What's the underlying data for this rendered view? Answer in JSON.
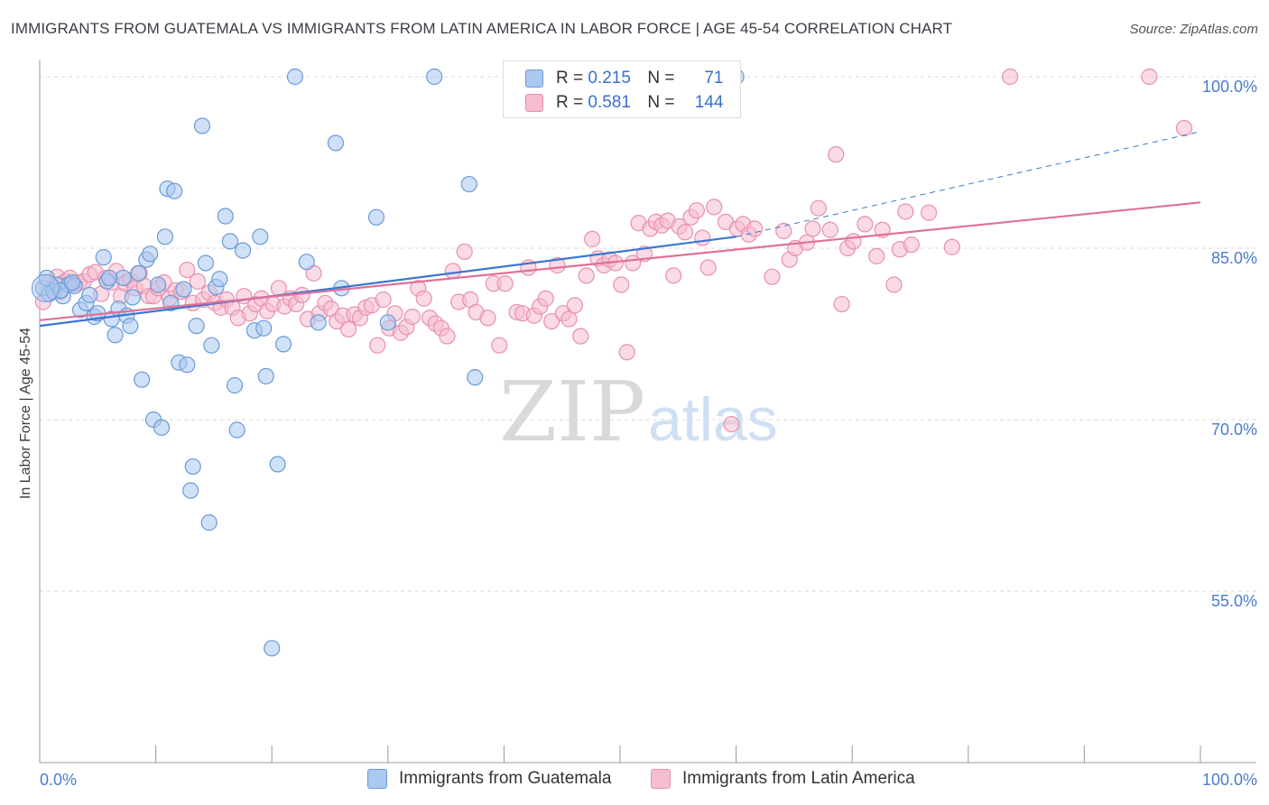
{
  "title": "IMMIGRANTS FROM GUATEMALA VS IMMIGRANTS FROM LATIN AMERICA IN LABOR FORCE | AGE 45-54 CORRELATION CHART",
  "source": "Source: ZipAtlas.com",
  "watermark": {
    "zip": "ZIP",
    "atlas": "atlas"
  },
  "legend": {
    "rows": [
      {
        "r_label": "R =",
        "r_value": "0.215",
        "n_label": "N =",
        "n_value": "71"
      },
      {
        "r_label": "R =",
        "r_value": "0.581",
        "n_label": "N =",
        "n_value": "144"
      }
    ]
  },
  "colors": {
    "blue_fill": "#aac8f0",
    "blue_stroke": "#6a9ad8",
    "blue_line": "#3a76d0",
    "pink_fill": "#f6bcd0",
    "pink_stroke": "#e890ae",
    "pink_line": "#e0709a",
    "tick_label": "#4a7ccc",
    "grid": "#d8d8d8"
  },
  "chart_data": {
    "type": "scatter",
    "title": "IMMIGRANTS FROM GUATEMALA VS IMMIGRANTS FROM LATIN AMERICA IN LABOR FORCE | AGE 45-54 CORRELATION CHART",
    "xlabel": "",
    "ylabel": "In Labor Force | Age 45-54",
    "xlim": [
      0,
      100
    ],
    "ylim": [
      40,
      101.5
    ],
    "x_tick_labels": [
      "0.0%",
      "100.0%"
    ],
    "y_ticks": [
      55,
      70,
      85,
      100
    ],
    "y_tick_labels": [
      "55.0%",
      "70.0%",
      "85.0%",
      "100.0%"
    ],
    "grid": true,
    "legend_position": "top-center",
    "series": [
      {
        "name": "Immigrants from Guatemala",
        "color": "#6a9ad8",
        "trend": {
          "x": [
            0,
            60
          ],
          "y": [
            78.2,
            86.0
          ],
          "dashed_to": [
            100,
            95.2
          ]
        },
        "points": [
          [
            0.3,
            81.5
          ],
          [
            0.8,
            81.0
          ],
          [
            1.2,
            81.2
          ],
          [
            1.5,
            81.8
          ],
          [
            2.0,
            80.8
          ],
          [
            2.5,
            81.8
          ],
          [
            3.0,
            81.7
          ],
          [
            3.5,
            79.6
          ],
          [
            4.0,
            80.2
          ],
          [
            4.3,
            80.9
          ],
          [
            4.7,
            79.0
          ],
          [
            5.0,
            79.3
          ],
          [
            5.5,
            84.2
          ],
          [
            5.8,
            82.1
          ],
          [
            6.2,
            78.8
          ],
          [
            6.5,
            77.4
          ],
          [
            6.8,
            79.7
          ],
          [
            7.2,
            82.4
          ],
          [
            7.5,
            79.1
          ],
          [
            7.8,
            78.2
          ],
          [
            8.0,
            80.7
          ],
          [
            8.5,
            82.8
          ],
          [
            8.8,
            73.5
          ],
          [
            9.2,
            84.0
          ],
          [
            9.5,
            84.5
          ],
          [
            9.8,
            70.0
          ],
          [
            10.2,
            81.8
          ],
          [
            10.5,
            69.3
          ],
          [
            10.8,
            86.0
          ],
          [
            11.0,
            90.2
          ],
          [
            11.3,
            80.2
          ],
          [
            11.6,
            90.0
          ],
          [
            12.0,
            75.0
          ],
          [
            12.4,
            81.4
          ],
          [
            12.7,
            74.8
          ],
          [
            13.2,
            65.9
          ],
          [
            13.0,
            63.8
          ],
          [
            13.5,
            78.2
          ],
          [
            14.0,
            95.7
          ],
          [
            14.3,
            83.7
          ],
          [
            14.6,
            61.0
          ],
          [
            14.8,
            76.5
          ],
          [
            15.2,
            81.6
          ],
          [
            15.5,
            82.3
          ],
          [
            16.0,
            87.8
          ],
          [
            16.4,
            85.6
          ],
          [
            16.8,
            73.0
          ],
          [
            17.0,
            69.1
          ],
          [
            17.5,
            84.8
          ],
          [
            18.5,
            77.8
          ],
          [
            19.0,
            86.0
          ],
          [
            19.3,
            78.0
          ],
          [
            19.5,
            73.8
          ],
          [
            20.0,
            50.0
          ],
          [
            20.5,
            66.1
          ],
          [
            21.0,
            76.6
          ],
          [
            22.0,
            100.0
          ],
          [
            23.0,
            83.8
          ],
          [
            24.0,
            78.5
          ],
          [
            25.5,
            94.2
          ],
          [
            26.0,
            81.5
          ],
          [
            29.0,
            87.7
          ],
          [
            30.0,
            78.5
          ],
          [
            34.0,
            100.0
          ],
          [
            37.0,
            90.6
          ],
          [
            37.5,
            73.7
          ],
          [
            60.0,
            100.0
          ],
          [
            0.6,
            82.4
          ],
          [
            1.8,
            81.3
          ],
          [
            2.8,
            82.0
          ],
          [
            6.0,
            82.4
          ]
        ]
      },
      {
        "name": "Immigrants from Latin America",
        "color": "#e890ae",
        "trend": {
          "x": [
            0,
            100
          ],
          "y": [
            78.7,
            89.0
          ]
        },
        "points": [
          [
            0.3,
            80.3
          ],
          [
            0.8,
            82.0
          ],
          [
            1.2,
            81.5
          ],
          [
            1.5,
            82.5
          ],
          [
            1.8,
            81.2
          ],
          [
            2.2,
            82.1
          ],
          [
            2.6,
            82.4
          ],
          [
            3.0,
            81.9
          ],
          [
            3.4,
            82.0
          ],
          [
            3.8,
            82.1
          ],
          [
            4.3,
            82.7
          ],
          [
            4.8,
            82.9
          ],
          [
            5.3,
            81.0
          ],
          [
            5.7,
            82.4
          ],
          [
            6.2,
            82.0
          ],
          [
            6.6,
            83.0
          ],
          [
            7.0,
            80.8
          ],
          [
            7.4,
            81.9
          ],
          [
            7.8,
            82.2
          ],
          [
            8.2,
            81.5
          ],
          [
            8.6,
            82.8
          ],
          [
            9.0,
            81.7
          ],
          [
            9.4,
            80.8
          ],
          [
            9.8,
            80.8
          ],
          [
            10.2,
            81.5
          ],
          [
            10.7,
            82.0
          ],
          [
            11.2,
            80.6
          ],
          [
            11.7,
            81.3
          ],
          [
            12.2,
            81.2
          ],
          [
            12.7,
            83.1
          ],
          [
            13.2,
            80.2
          ],
          [
            13.6,
            82.1
          ],
          [
            14.1,
            80.5
          ],
          [
            14.6,
            81.1
          ],
          [
            15.1,
            80.2
          ],
          [
            15.6,
            79.8
          ],
          [
            16.1,
            80.5
          ],
          [
            16.6,
            79.8
          ],
          [
            17.1,
            78.9
          ],
          [
            17.6,
            80.8
          ],
          [
            18.1,
            79.3
          ],
          [
            18.6,
            80.1
          ],
          [
            19.1,
            80.6
          ],
          [
            19.6,
            79.5
          ],
          [
            20.1,
            80.1
          ],
          [
            20.6,
            81.5
          ],
          [
            21.1,
            79.9
          ],
          [
            21.6,
            80.6
          ],
          [
            22.1,
            80.1
          ],
          [
            22.6,
            80.9
          ],
          [
            23.1,
            78.8
          ],
          [
            23.6,
            82.8
          ],
          [
            24.1,
            79.3
          ],
          [
            24.6,
            80.2
          ],
          [
            25.1,
            79.7
          ],
          [
            25.6,
            78.6
          ],
          [
            26.1,
            79.1
          ],
          [
            26.6,
            77.9
          ],
          [
            27.1,
            79.2
          ],
          [
            27.6,
            78.9
          ],
          [
            28.1,
            79.8
          ],
          [
            28.6,
            80.0
          ],
          [
            29.1,
            76.5
          ],
          [
            29.6,
            80.5
          ],
          [
            30.1,
            78.0
          ],
          [
            30.6,
            79.3
          ],
          [
            31.1,
            77.6
          ],
          [
            31.6,
            78.1
          ],
          [
            32.1,
            79.0
          ],
          [
            32.6,
            81.5
          ],
          [
            33.1,
            80.6
          ],
          [
            33.6,
            78.9
          ],
          [
            34.1,
            78.4
          ],
          [
            34.6,
            78.0
          ],
          [
            35.1,
            77.3
          ],
          [
            35.6,
            83.0
          ],
          [
            36.1,
            80.3
          ],
          [
            36.6,
            84.7
          ],
          [
            37.1,
            80.5
          ],
          [
            37.6,
            79.4
          ],
          [
            38.6,
            78.9
          ],
          [
            39.1,
            81.9
          ],
          [
            39.6,
            76.5
          ],
          [
            40.1,
            81.9
          ],
          [
            41.1,
            79.4
          ],
          [
            41.6,
            79.3
          ],
          [
            42.1,
            83.3
          ],
          [
            42.6,
            79.1
          ],
          [
            43.1,
            79.9
          ],
          [
            43.6,
            80.6
          ],
          [
            44.1,
            78.6
          ],
          [
            44.6,
            83.5
          ],
          [
            45.1,
            79.3
          ],
          [
            45.6,
            78.8
          ],
          [
            46.1,
            80.0
          ],
          [
            46.6,
            77.3
          ],
          [
            47.1,
            82.6
          ],
          [
            47.6,
            85.8
          ],
          [
            48.1,
            84.1
          ],
          [
            48.6,
            83.5
          ],
          [
            49.1,
            84.0
          ],
          [
            49.6,
            83.7
          ],
          [
            50.1,
            81.8
          ],
          [
            50.6,
            75.9
          ],
          [
            51.1,
            83.7
          ],
          [
            51.6,
            87.2
          ],
          [
            52.1,
            84.5
          ],
          [
            52.6,
            86.7
          ],
          [
            53.1,
            87.3
          ],
          [
            53.6,
            87.0
          ],
          [
            54.1,
            87.4
          ],
          [
            54.6,
            82.6
          ],
          [
            55.1,
            86.9
          ],
          [
            55.6,
            86.4
          ],
          [
            56.1,
            87.7
          ],
          [
            56.6,
            88.3
          ],
          [
            57.1,
            85.9
          ],
          [
            57.6,
            83.3
          ],
          [
            58.1,
            88.6
          ],
          [
            59.1,
            87.3
          ],
          [
            59.6,
            69.6
          ],
          [
            60.1,
            86.7
          ],
          [
            60.6,
            87.1
          ],
          [
            61.1,
            86.2
          ],
          [
            61.6,
            86.7
          ],
          [
            63.1,
            82.5
          ],
          [
            64.1,
            86.5
          ],
          [
            64.6,
            84.0
          ],
          [
            65.1,
            85.0
          ],
          [
            66.1,
            85.5
          ],
          [
            66.6,
            86.7
          ],
          [
            67.1,
            88.5
          ],
          [
            68.1,
            86.6
          ],
          [
            68.6,
            93.2
          ],
          [
            69.1,
            80.1
          ],
          [
            69.6,
            85.0
          ],
          [
            70.1,
            85.6
          ],
          [
            71.1,
            87.1
          ],
          [
            72.1,
            84.3
          ],
          [
            72.6,
            86.6
          ],
          [
            73.6,
            81.8
          ],
          [
            74.1,
            84.9
          ],
          [
            74.6,
            88.2
          ],
          [
            75.1,
            85.3
          ],
          [
            76.6,
            88.1
          ],
          [
            78.6,
            85.1
          ],
          [
            83.6,
            100.0
          ],
          [
            95.6,
            100.0
          ],
          [
            98.6,
            95.5
          ]
        ]
      }
    ]
  },
  "y_axis_title": "In Labor Force | Age 45-54"
}
